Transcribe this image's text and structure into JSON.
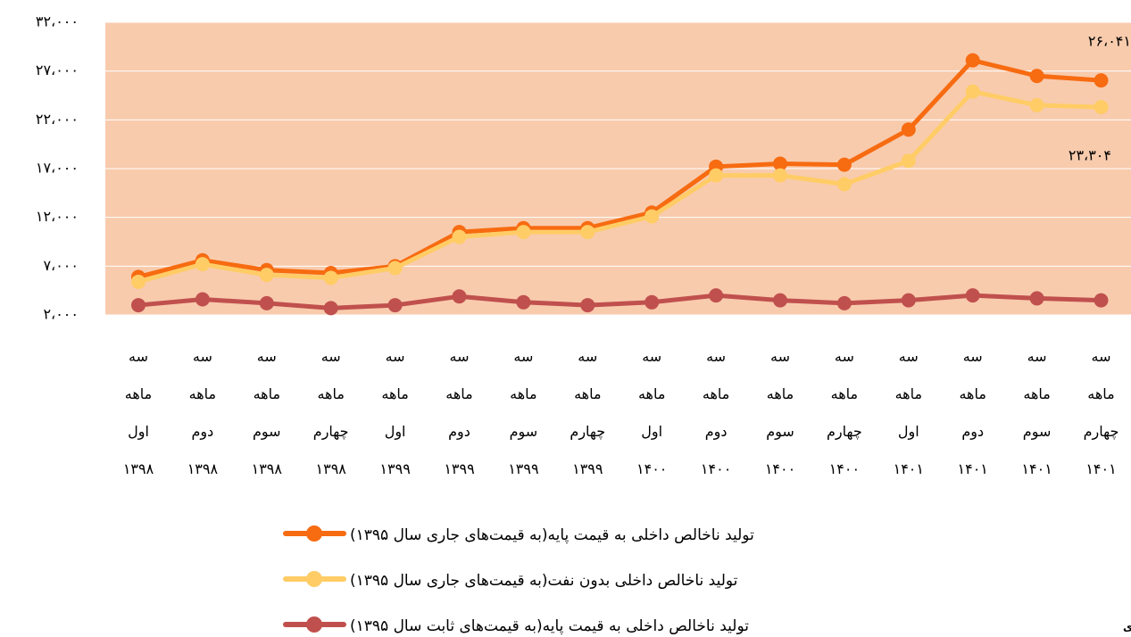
{
  "chart_data": {
    "type": "line",
    "categories": [
      "سه ماهه اول ۱۳۹۸",
      "سه ماهه دوم ۱۳۹۸",
      "سه ماهه سوم ۱۳۹۸",
      "سه ماهه چهارم ۱۳۹۸",
      "سه ماهه اول ۱۳۹۹",
      "سه ماهه دوم ۱۳۹۹",
      "سه ماهه سوم ۱۳۹۹",
      "سه ماهه چهارم ۱۳۹۹",
      "سه ماهه اول ۱۴۰۰",
      "سه ماهه دوم ۱۴۰۰",
      "سه ماهه سوم ۱۴۰۰",
      "سه ماهه چهارم ۱۴۰۰",
      "سه ماهه اول ۱۴۰۱",
      "سه ماهه دوم ۱۴۰۱",
      "سه ماهه سوم ۱۴۰۱",
      "سه ماهه چهارم ۱۴۰۱"
    ],
    "series": [
      {
        "name": "تولید ناخالص داخلی به قیمت پایه(به قیمت‌های جاری سال ۱۳۹۵)",
        "color": "#f76b11",
        "values": [
          5900,
          7600,
          6600,
          6300,
          7000,
          10500,
          10900,
          10900,
          12500,
          17200,
          17500,
          17400,
          21000,
          28100,
          26500,
          26041
        ],
        "value_labels": [
          null,
          null,
          null,
          null,
          null,
          null,
          null,
          null,
          null,
          null,
          null,
          null,
          null,
          null,
          null,
          "۲۶،۰۴۱"
        ]
      },
      {
        "name": "تولید ناخالص داخلی بدون نفت(به قیمت‌های جاری سال ۱۳۹۵)",
        "color": "#ffcc66",
        "values": [
          5400,
          7200,
          6100,
          5800,
          6800,
          10000,
          10500,
          10500,
          12100,
          16300,
          16300,
          15400,
          17800,
          24900,
          23500,
          23304
        ],
        "value_labels": [
          null,
          null,
          null,
          null,
          null,
          null,
          null,
          null,
          null,
          null,
          null,
          null,
          null,
          null,
          null,
          "۲۳،۳۰۴"
        ]
      },
      {
        "name": "تولید ناخالص داخلی به قیمت پایه(به قیمت‌های ثابت سال ۱۳۹۵)",
        "color": "#c0504d",
        "values": [
          3000,
          3600,
          3200,
          2700,
          3000,
          3900,
          3300,
          3000,
          3300,
          4000,
          3500,
          3200,
          3500,
          4000,
          3700,
          3500
        ]
      }
    ],
    "ylim": [
      2000,
      32000
    ],
    "yticks": [
      {
        "value": 2000,
        "label": "۲،۰۰۰"
      },
      {
        "value": 7000,
        "label": "۷،۰۰۰"
      },
      {
        "value": 12000,
        "label": "۱۲،۰۰۰"
      },
      {
        "value": 17000,
        "label": "۱۷،۰۰۰"
      },
      {
        "value": 22000,
        "label": "۲۲،۰۰۰"
      },
      {
        "value": 27000,
        "label": "۲۷،۰۰۰"
      },
      {
        "value": 32000,
        "label": "۳۲،۰۰۰"
      }
    ],
    "grid": true,
    "plot_background": "#f8cbad",
    "legend": "bottom",
    "source": "منبع:بانک‌مرکزی"
  }
}
